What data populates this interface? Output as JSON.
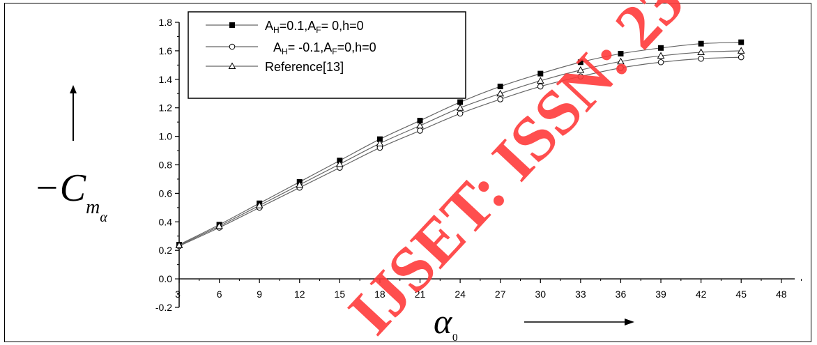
{
  "chart_data": {
    "type": "line",
    "title": "",
    "xlabel": "α₀",
    "ylabel": "−Cmα",
    "xlim": [
      3,
      49
    ],
    "ylim": [
      -0.2,
      1.8
    ],
    "x_ticks": [
      "3",
      "6",
      "9",
      "12",
      "15",
      "18",
      "21",
      "24",
      "27",
      "30",
      "33",
      "36",
      "39",
      "42",
      "45",
      "48"
    ],
    "y_ticks": [
      "-0.2",
      "0.0",
      "0.2",
      "0.4",
      "0.6",
      "0.8",
      "1.0",
      "1.2",
      "1.4",
      "1.6",
      "1.8"
    ],
    "legend_position": "top-left",
    "series": [
      {
        "name": "AH=0.1,AF= 0,h=0",
        "legend_parts": [
          [
            "A",
            ""
          ],
          [
            "H",
            "sub"
          ],
          [
            "=0.1,A",
            ""
          ],
          [
            "F",
            "sub"
          ],
          [
            "= 0,h=0",
            ""
          ]
        ],
        "marker": "filled-square",
        "x": [
          3,
          6,
          9,
          12,
          15,
          18,
          21,
          24,
          27,
          30,
          33,
          36,
          39,
          42,
          45
        ],
        "values": [
          0.24,
          0.38,
          0.53,
          0.68,
          0.83,
          0.98,
          1.11,
          1.24,
          1.35,
          1.44,
          1.52,
          1.58,
          1.62,
          1.65,
          1.66
        ]
      },
      {
        "name": "AH= -0.1,AF=0,h=0",
        "legend_parts": [
          [
            "A",
            ""
          ],
          [
            "H",
            "sub"
          ],
          [
            "= -0.1,A",
            ""
          ],
          [
            "F",
            "sub"
          ],
          [
            "=0,h=0",
            ""
          ]
        ],
        "marker": "open-circle",
        "x": [
          3,
          6,
          9,
          12,
          15,
          18,
          21,
          24,
          27,
          30,
          33,
          36,
          39,
          42,
          45
        ],
        "values": [
          0.23,
          0.36,
          0.5,
          0.64,
          0.78,
          0.92,
          1.04,
          1.16,
          1.26,
          1.35,
          1.42,
          1.48,
          1.52,
          1.545,
          1.555
        ]
      },
      {
        "name": "Reference[13]",
        "legend_parts": [
          [
            "Reference[13]",
            ""
          ]
        ],
        "marker": "open-triangle",
        "x": [
          3,
          6,
          9,
          12,
          15,
          18,
          21,
          24,
          27,
          30,
          33,
          36,
          39,
          42,
          45
        ],
        "values": [
          0.235,
          0.37,
          0.515,
          0.66,
          0.805,
          0.95,
          1.075,
          1.2,
          1.3,
          1.39,
          1.465,
          1.525,
          1.565,
          1.59,
          1.6
        ]
      }
    ]
  },
  "watermark": "IJSET: ISSN: 23",
  "colors": {
    "line": "#666666",
    "watermark": "#ff3b3b",
    "axis": "#000000"
  }
}
